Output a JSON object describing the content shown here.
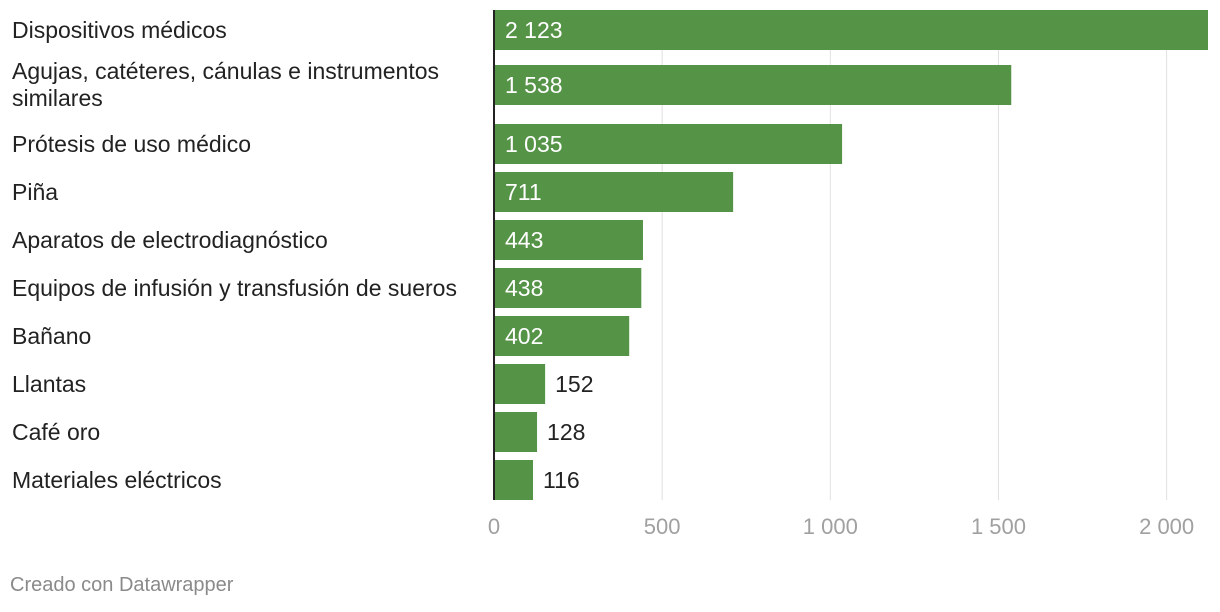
{
  "chart_data": {
    "type": "bar",
    "orientation": "horizontal",
    "categories": [
      "Dispositivos médicos",
      "Agujas, catéteres, cánulas e instrumentos similares",
      "Prótesis de uso médico",
      "Piña",
      "Aparatos de electrodiagnóstico",
      "Equipos de infusión y transfusión de sueros",
      "Bañano",
      "Llantas",
      "Café oro",
      "Materiales eléctricos"
    ],
    "values": [
      2123,
      1538,
      1035,
      711,
      443,
      438,
      402,
      152,
      128,
      116
    ],
    "value_labels": [
      "2 123",
      "1 538",
      "1 035",
      "711",
      "443",
      "438",
      "402",
      "152",
      "128",
      "116"
    ],
    "x_ticks": [
      0,
      500,
      1000,
      1500,
      2000
    ],
    "x_tick_labels": [
      "0",
      "500",
      "1 000",
      "1 500",
      "2 000"
    ],
    "xlim": [
      0,
      2123
    ],
    "grid": true,
    "colors": {
      "bar": "#559347",
      "grid": "#e0e0e0",
      "axis_text": "#a0a0a0",
      "label_inside": "#ffffff",
      "label_outside": "#222222"
    }
  },
  "footer": {
    "credit": "Creado con Datawrapper"
  }
}
